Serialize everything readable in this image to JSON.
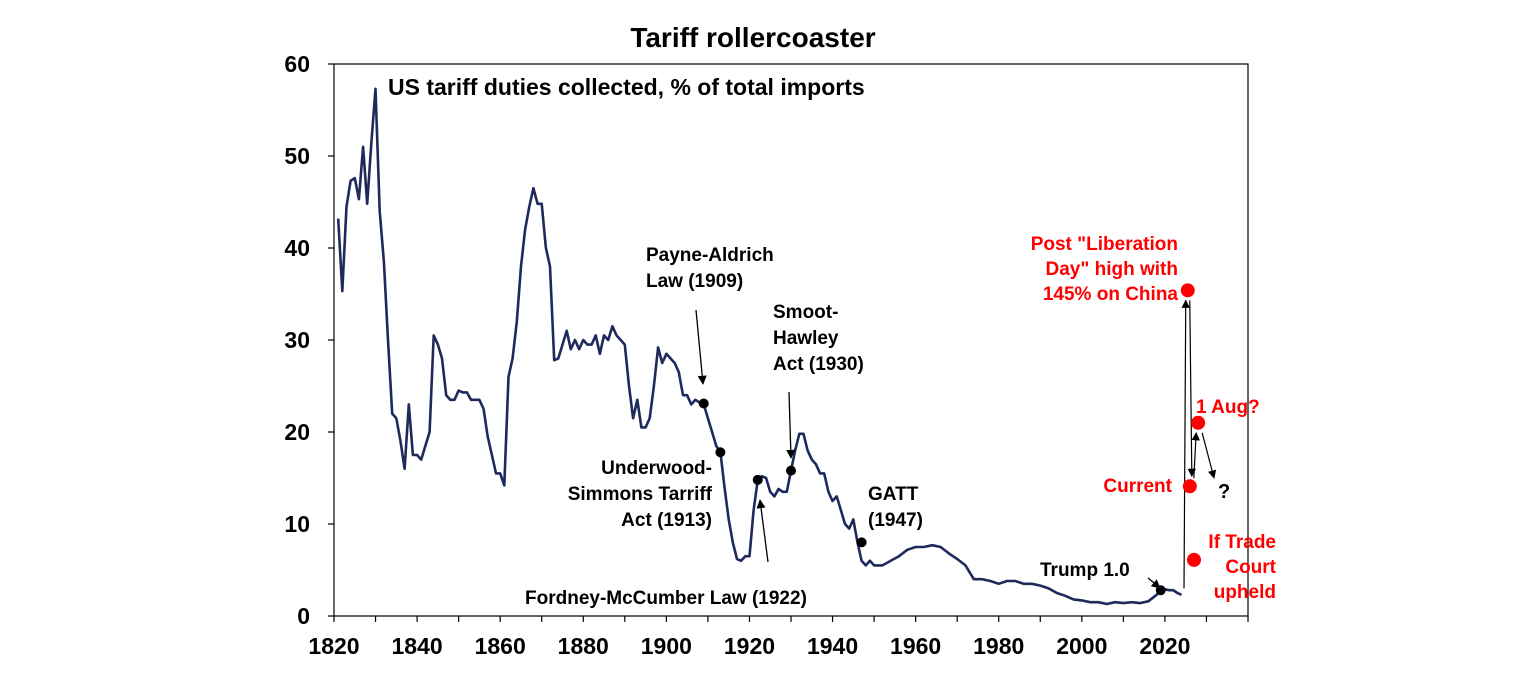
{
  "chart_data": {
    "type": "line",
    "title": "Tariff rollercoaster",
    "subtitle": "US tariff duties collected, % of total imports",
    "xlabel": "",
    "ylabel": "",
    "xlim": [
      1820,
      2040
    ],
    "ylim": [
      0,
      60
    ],
    "x_ticks": [
      1820,
      1840,
      1860,
      1880,
      1900,
      1920,
      1940,
      1960,
      1980,
      2000,
      2020
    ],
    "y_ticks": [
      0,
      10,
      20,
      30,
      40,
      50,
      60
    ],
    "grid": false,
    "legend": "none",
    "line_color": "#1f2a5c",
    "highlight_color": "#ff0000",
    "series": [
      {
        "x": [
          1821,
          1822,
          1823,
          1824,
          1825,
          1826,
          1827,
          1828,
          1829,
          1830,
          1831,
          1832,
          1833,
          1834,
          1835,
          1836,
          1837,
          1838,
          1839,
          1840,
          1841,
          1842,
          1843,
          1844,
          1845,
          1846,
          1847,
          1848,
          1849,
          1850,
          1851,
          1852,
          1853,
          1854,
          1855,
          1856,
          1857,
          1858,
          1859,
          1860,
          1861,
          1862,
          1863,
          1864,
          1865,
          1866,
          1867,
          1868,
          1869,
          1870,
          1871,
          1872,
          1873,
          1874,
          1875,
          1876,
          1877,
          1878,
          1879,
          1880,
          1881,
          1882,
          1883,
          1884,
          1885,
          1886,
          1887,
          1888,
          1889,
          1890,
          1891,
          1892,
          1893,
          1894,
          1895,
          1896,
          1897,
          1898,
          1899,
          1900,
          1901,
          1902,
          1903,
          1904,
          1905,
          1906,
          1907,
          1908,
          1909,
          1910,
          1911,
          1912,
          1913,
          1914,
          1915,
          1916,
          1917,
          1918,
          1919,
          1920,
          1921,
          1922,
          1923,
          1924,
          1925,
          1926,
          1927,
          1928,
          1929,
          1930,
          1931,
          1932,
          1933,
          1934,
          1935,
          1936,
          1937,
          1938,
          1939,
          1940,
          1941,
          1942,
          1943,
          1944,
          1945,
          1946,
          1947,
          1948,
          1949,
          1950,
          1952,
          1954,
          1956,
          1958,
          1960,
          1962,
          1964,
          1966,
          1968,
          1970,
          1972,
          1974,
          1976,
          1978,
          1980,
          1982,
          1984,
          1986,
          1988,
          1990,
          1992,
          1994,
          1996,
          1998,
          2000,
          2002,
          2004,
          2006,
          2008,
          2010,
          2012,
          2014,
          2016,
          2018,
          2019,
          2020,
          2021,
          2022,
          2023,
          2024
        ],
        "y": [
          43.2,
          35.3,
          44.5,
          47.3,
          47.6,
          45.3,
          51.0,
          44.8,
          51.5,
          57.3,
          44.0,
          38.5,
          30.0,
          22.0,
          21.5,
          19.0,
          16.0,
          23.0,
          17.5,
          17.5,
          17.0,
          18.5,
          20.0,
          30.5,
          29.5,
          28.0,
          24.0,
          23.5,
          23.5,
          24.5,
          24.3,
          24.3,
          23.5,
          23.5,
          23.5,
          22.5,
          19.5,
          17.5,
          15.5,
          15.5,
          14.2,
          26.0,
          28.0,
          32.0,
          38.0,
          42.0,
          44.5,
          46.5,
          44.8,
          44.8,
          40.0,
          38.0,
          27.8,
          28.0,
          29.5,
          31.0,
          29.0,
          30.0,
          29.0,
          30.0,
          29.5,
          29.5,
          30.5,
          28.5,
          30.5,
          30.0,
          31.5,
          30.5,
          30.0,
          29.5,
          25.0,
          21.5,
          23.5,
          20.5,
          20.5,
          21.5,
          25.0,
          29.2,
          27.5,
          28.5,
          28.0,
          27.5,
          26.5,
          24.0,
          24.0,
          23.0,
          23.5,
          23.2,
          23.0,
          21.5,
          20.0,
          18.5,
          17.8,
          14.0,
          10.5,
          8.0,
          6.2,
          6.0,
          6.5,
          6.5,
          11.5,
          14.8,
          15.2,
          15.0,
          13.5,
          13.0,
          13.8,
          13.5,
          13.5,
          15.8,
          18.0,
          19.8,
          19.8,
          18.0,
          17.0,
          16.5,
          15.5,
          15.5,
          13.5,
          12.5,
          13.0,
          11.5,
          10.0,
          9.5,
          10.5,
          8.0,
          6.0,
          5.5,
          6.0,
          5.5,
          5.5,
          6.0,
          6.5,
          7.2,
          7.5,
          7.5,
          7.7,
          7.5,
          6.8,
          6.2,
          5.5,
          4.0,
          4.0,
          3.8,
          3.5,
          3.8,
          3.8,
          3.5,
          3.5,
          3.3,
          3.0,
          2.5,
          2.2,
          1.8,
          1.7,
          1.5,
          1.5,
          1.3,
          1.5,
          1.4,
          1.5,
          1.4,
          1.6,
          2.3,
          2.8,
          2.9,
          2.8,
          2.8,
          2.5,
          2.3
        ]
      }
    ],
    "highlight_points": [
      {
        "x": 2025.5,
        "y": 35.4,
        "label_lines": [
          "Post \"Liberation",
          "Day\" high with",
          "145% on China"
        ]
      },
      {
        "x": 2028,
        "y": 21.0,
        "label_lines": [
          "1 Aug?"
        ]
      },
      {
        "x": 2026,
        "y": 14.1,
        "label_lines": [
          "Current"
        ]
      },
      {
        "x": 2027,
        "y": 6.1,
        "label_lines": [
          "If Trade",
          "Court",
          "upheld"
        ]
      }
    ],
    "annotations": [
      {
        "x": 1909,
        "y": 23.1,
        "label_lines": [
          "Payne-Aldrich",
          "Law (1909)"
        ]
      },
      {
        "x": 1913,
        "y": 17.8,
        "label_lines": [
          "Underwood-",
          "Simmons Tarriff",
          "Act (1913)"
        ]
      },
      {
        "x": 1922,
        "y": 14.8,
        "label_lines": [
          "Fordney-McCumber Law (1922)"
        ]
      },
      {
        "x": 1930,
        "y": 15.8,
        "label_lines": [
          "Smoot-",
          "Hawley",
          "Act (1930)"
        ]
      },
      {
        "x": 1947,
        "y": 8.0,
        "label_lines": [
          "GATT",
          "(1947)"
        ]
      },
      {
        "x": 2019,
        "y": 2.8,
        "label_lines": [
          "Trump 1.0"
        ]
      }
    ],
    "question_mark": "?"
  }
}
